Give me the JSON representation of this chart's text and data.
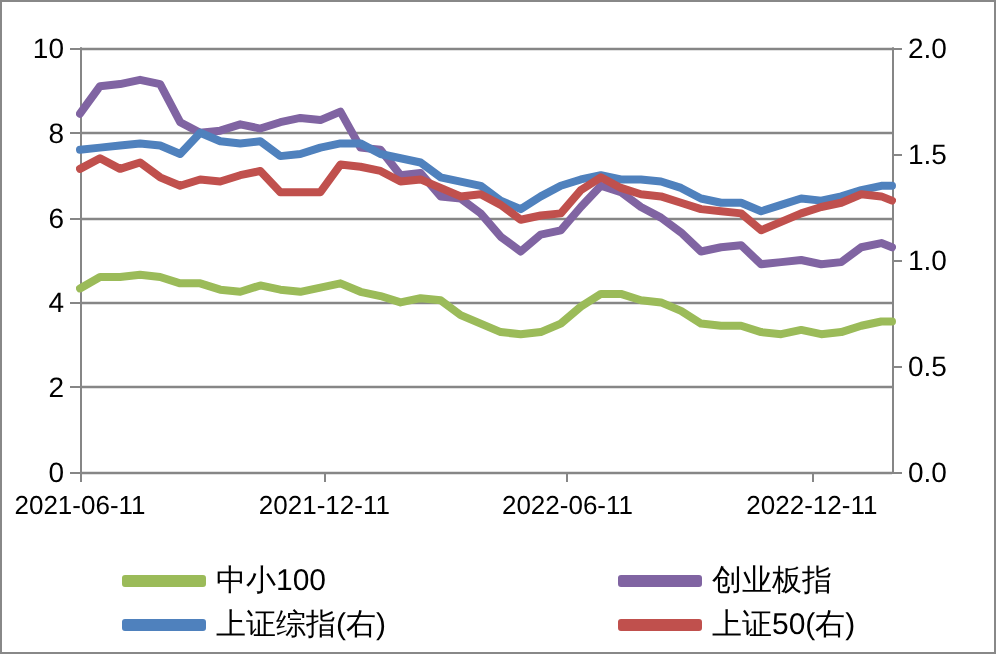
{
  "chart_data": {
    "type": "line",
    "x": [
      "2021-06-11",
      "2021-06-26",
      "2021-07-11",
      "2021-07-26",
      "2021-08-10",
      "2021-08-25",
      "2021-09-09",
      "2021-09-24",
      "2021-10-09",
      "2021-10-24",
      "2021-11-08",
      "2021-11-23",
      "2021-12-08",
      "2021-12-23",
      "2022-01-07",
      "2022-01-22",
      "2022-02-06",
      "2022-02-21",
      "2022-03-08",
      "2022-03-23",
      "2022-04-07",
      "2022-04-22",
      "2022-05-07",
      "2022-05-22",
      "2022-06-06",
      "2022-06-21",
      "2022-07-06",
      "2022-07-21",
      "2022-08-05",
      "2022-08-20",
      "2022-09-04",
      "2022-09-19",
      "2022-10-04",
      "2022-10-19",
      "2022-11-03",
      "2022-11-18",
      "2022-12-03",
      "2022-12-18",
      "2023-01-02",
      "2023-01-17",
      "2023-02-01",
      "2023-02-09"
    ],
    "series": [
      {
        "name": "中小100",
        "color": "#9bbb59",
        "values": [
          4.33,
          4.6,
          4.6,
          4.65,
          4.6,
          4.45,
          4.45,
          4.3,
          4.25,
          4.4,
          4.3,
          4.25,
          4.35,
          4.45,
          4.25,
          4.15,
          4.0,
          4.1,
          4.05,
          3.7,
          3.5,
          3.3,
          3.25,
          3.3,
          3.5,
          3.9,
          4.2,
          4.2,
          4.05,
          4.0,
          3.8,
          3.5,
          3.45,
          3.45,
          3.3,
          3.25,
          3.35,
          3.25,
          3.3,
          3.45,
          3.55,
          3.55
        ]
      },
      {
        "name": "创业板指",
        "color": "#8064a2",
        "values": [
          8.45,
          9.1,
          9.15,
          9.25,
          9.15,
          8.25,
          8.0,
          8.05,
          8.2,
          8.1,
          8.25,
          8.35,
          8.3,
          8.5,
          7.65,
          7.6,
          7.0,
          7.05,
          6.5,
          6.45,
          6.1,
          5.55,
          5.2,
          5.6,
          5.7,
          6.25,
          6.75,
          6.6,
          6.25,
          6.0,
          5.65,
          5.2,
          5.3,
          5.35,
          4.9,
          4.95,
          5.0,
          4.9,
          4.95,
          5.3,
          5.4,
          5.3
        ]
      },
      {
        "name": "上证综指(右)",
        "color": "#4f81bd",
        "axis": "y2",
        "values": [
          1.52,
          1.53,
          1.54,
          1.55,
          1.54,
          1.5,
          1.6,
          1.56,
          1.55,
          1.56,
          1.49,
          1.5,
          1.53,
          1.55,
          1.55,
          1.5,
          1.48,
          1.46,
          1.39,
          1.37,
          1.35,
          1.28,
          1.24,
          1.3,
          1.35,
          1.38,
          1.4,
          1.38,
          1.38,
          1.37,
          1.34,
          1.29,
          1.27,
          1.27,
          1.23,
          1.26,
          1.29,
          1.28,
          1.3,
          1.33,
          1.35,
          1.35
        ]
      },
      {
        "name": "上证50(右)",
        "color": "#c0504d",
        "axis": "y2",
        "values": [
          1.43,
          1.48,
          1.43,
          1.46,
          1.39,
          1.35,
          1.38,
          1.37,
          1.4,
          1.42,
          1.32,
          1.32,
          1.32,
          1.45,
          1.44,
          1.42,
          1.37,
          1.38,
          1.34,
          1.3,
          1.31,
          1.26,
          1.19,
          1.21,
          1.22,
          1.33,
          1.39,
          1.34,
          1.31,
          1.3,
          1.27,
          1.24,
          1.23,
          1.22,
          1.14,
          1.18,
          1.22,
          1.25,
          1.27,
          1.31,
          1.3,
          1.28
        ]
      }
    ],
    "xlim": [
      "2021-06-11",
      "2023-02-09"
    ],
    "xticks": [
      "2021-06-11",
      "2021-12-11",
      "2022-06-11",
      "2022-12-11"
    ],
    "ylim": [
      0,
      10
    ],
    "yticks": [
      0,
      2,
      4,
      6,
      8,
      10
    ],
    "y2lim": [
      0,
      2
    ],
    "y2ticks": [
      {
        "value": 0,
        "label": "0.0"
      },
      {
        "value": 0.5,
        "label": "0.5"
      },
      {
        "value": 1,
        "label": "1.0"
      },
      {
        "value": 1.5,
        "label": "1.5"
      },
      {
        "value": 2,
        "label": "2.0"
      }
    ],
    "grid": "y",
    "legend": "bottom",
    "marker": "none",
    "line_style": "solid"
  }
}
